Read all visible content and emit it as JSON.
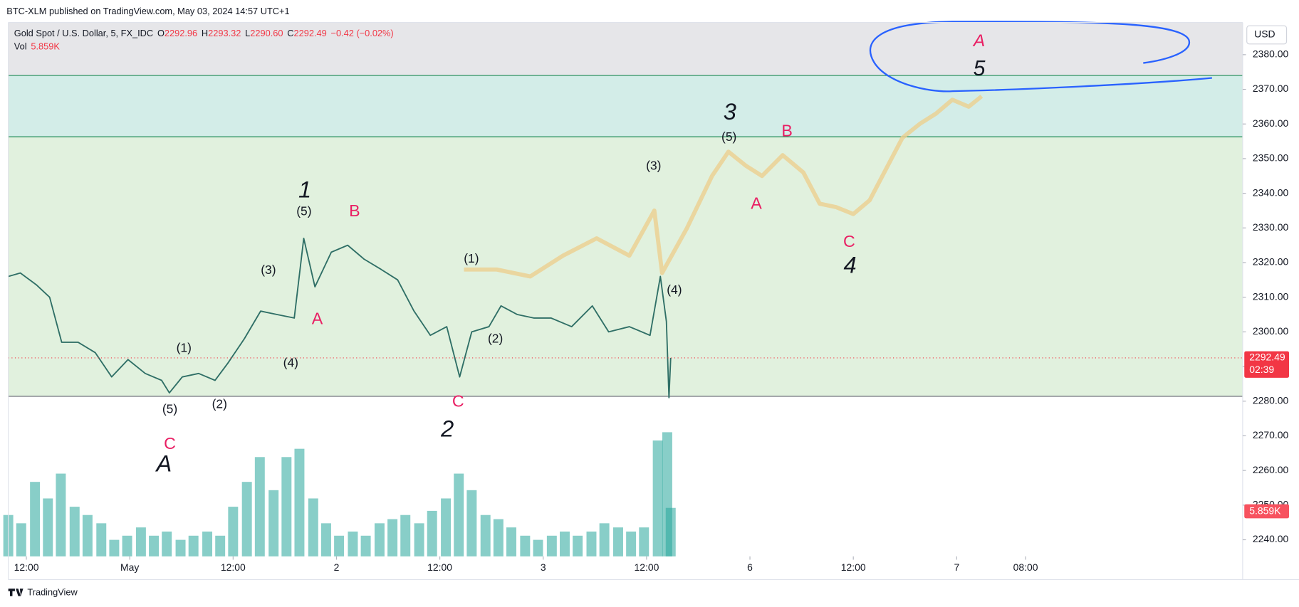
{
  "header": {
    "published": "BTC-XLM published on TradingView.com, May 03, 2024 14:57 UTC+1",
    "footer": "TradingView",
    "currency": "USD"
  },
  "legend": {
    "symbol": "Gold Spot / U.S. Dollar, 5, FX_IDC",
    "ohlc": [
      [
        "O",
        "2292.96"
      ],
      [
        "H",
        "2293.32"
      ],
      [
        "L",
        "2290.60"
      ],
      [
        "C",
        "2292.49"
      ]
    ],
    "change": "−0.42 (−0.02%)",
    "vol_label": "Vol",
    "vol_value": "5.859K",
    "countdown": "02:39"
  },
  "chart_data": [
    {
      "type": "line",
      "last_price": 2292.49,
      "last_color": "#f23645",
      "xlim": [
        -2.1,
        141.2
      ],
      "ylim": [
        2235.2,
        2389.3
      ],
      "xticks": [
        {
          "value": 0,
          "label": "12:00"
        },
        {
          "value": 12,
          "label": "May"
        },
        {
          "value": 24,
          "label": "12:00"
        },
        {
          "value": 36,
          "label": "2"
        },
        {
          "value": 48,
          "label": "12:00"
        },
        {
          "value": 60,
          "label": "3"
        },
        {
          "value": 72,
          "label": "12:00"
        },
        {
          "value": 84,
          "label": "6"
        },
        {
          "value": 96,
          "label": "12:00"
        },
        {
          "value": 108,
          "label": "7"
        },
        {
          "value": 116,
          "label": "08:00"
        }
      ],
      "yticks": [
        {
          "value": 2240,
          "label": "2240.00"
        },
        {
          "value": 2250,
          "label": "2250.00"
        },
        {
          "value": 2260,
          "label": "2260.00"
        },
        {
          "value": 2270,
          "label": "2270.00"
        },
        {
          "value": 2280,
          "label": "2280.00"
        },
        {
          "value": 2290,
          "label": "2290.00"
        },
        {
          "value": 2300,
          "label": "2300.00"
        },
        {
          "value": 2310,
          "label": "2310.00"
        },
        {
          "value": 2320,
          "label": "2320.00"
        },
        {
          "value": 2330,
          "label": "2330.00"
        },
        {
          "value": 2340,
          "label": "2340.00"
        },
        {
          "value": 2350,
          "label": "2350.00"
        },
        {
          "value": 2360,
          "label": "2360.00"
        },
        {
          "value": 2370,
          "label": "2370.00"
        },
        {
          "value": 2380,
          "label": "2380.00"
        }
      ],
      "zones": [
        {
          "from": 2374.0,
          "to": 2389.3,
          "color": "#e6e6e9"
        },
        {
          "from": 2356.3,
          "to": 2374.0,
          "color": "#d3ede8"
        },
        {
          "from": 2281.4,
          "to": 2356.3,
          "color": "#e1f1de"
        }
      ],
      "hlines": [
        {
          "value": 2374.0,
          "color": "#1e8a55"
        },
        {
          "value": 2356.3,
          "color": "#1e8a55"
        },
        {
          "value": 2281.4,
          "color": "#5d606b"
        }
      ],
      "series": [
        {
          "name": "Gold Spot / U.S. Dollar",
          "color": "#2f6f66",
          "x": [
            -2.1,
            -0.7,
            1.2,
            2.7,
            4.1,
            6.0,
            8.0,
            9.9,
            11.8,
            13.8,
            15.7,
            16.6,
            18.1,
            20.0,
            21.9,
            23.4,
            25.3,
            27.2,
            29.1,
            31.1,
            32.2,
            33.5,
            35.4,
            37.3,
            39.2,
            41.2,
            43.1,
            45.0,
            46.9,
            48.8,
            50.3,
            51.7,
            53.7,
            55.1,
            57.0,
            58.9,
            60.9,
            63.3,
            65.7,
            67.6,
            70.0,
            72.4,
            73.6,
            74.3,
            74.6,
            74.8
          ],
          "values": [
            2316,
            2317,
            2313.5,
            2310,
            2297,
            2297,
            2294,
            2287,
            2292,
            2288,
            2286,
            2282.4,
            2287,
            2288,
            2286,
            2291,
            2298,
            2306,
            2305,
            2304,
            2327,
            2313,
            2323,
            2325,
            2321,
            2318,
            2315,
            2306,
            2299,
            2301.5,
            2287,
            2300,
            2301.5,
            2307.5,
            2305,
            2304,
            2304,
            2301.5,
            2307.5,
            2300,
            2301.5,
            2299,
            2316,
            2303,
            2281,
            2292.5
          ]
        },
        {
          "name": "Projection",
          "color": "#ecd08e",
          "x": [
            50.8,
            54.6,
            58.5,
            62.3,
            66.2,
            70.0,
            72.9,
            73.8,
            76.7,
            79.6,
            81.5,
            83.5,
            85.4,
            87.8,
            90.2,
            92.1,
            94.0,
            96.0,
            97.9,
            99.8,
            101.7,
            103.7,
            105.6,
            107.5,
            109.4,
            110.9
          ],
          "values": [
            2318,
            2318,
            2316,
            2322,
            2327,
            2322,
            2335,
            2317,
            2330,
            2345,
            2352,
            2348,
            2345,
            2351,
            2346,
            2337,
            2336,
            2334,
            2338,
            2347,
            2356,
            2360,
            2363,
            2367,
            2365,
            2368
          ]
        }
      ],
      "annotations": [
        {
          "text": "(1)",
          "color": "#131722"
        },
        {
          "text": "(5)",
          "color": "#131722"
        },
        {
          "text": "(2)",
          "color": "#131722"
        },
        {
          "text": "C",
          "color": "#e91e63"
        },
        {
          "text": "A",
          "color": "#131722"
        },
        {
          "text": "(3)",
          "color": "#131722"
        },
        {
          "text": "(4)",
          "color": "#131722"
        },
        {
          "text": "1",
          "color": "#131722"
        },
        {
          "text": "(5)",
          "color": "#131722"
        },
        {
          "text": "A",
          "color": "#e91e63"
        },
        {
          "text": "B",
          "color": "#e91e63"
        },
        {
          "text": "(1)",
          "color": "#131722"
        },
        {
          "text": "(2)",
          "color": "#131722"
        },
        {
          "text": "C",
          "color": "#e91e63"
        },
        {
          "text": "2",
          "color": "#131722"
        },
        {
          "text": "(3)",
          "color": "#131722"
        },
        {
          "text": "(4)",
          "color": "#131722"
        },
        {
          "text": "3",
          "color": "#131722"
        },
        {
          "text": "(5)",
          "color": "#131722"
        },
        {
          "text": "B",
          "color": "#e91e63"
        },
        {
          "text": "A",
          "color": "#e91e63"
        },
        {
          "text": "C",
          "color": "#e91e63"
        },
        {
          "text": "4",
          "color": "#131722"
        },
        {
          "text": "A",
          "color": "#e91e63"
        },
        {
          "text": "5",
          "color": "#131722"
        }
      ]
    },
    {
      "type": "bar",
      "name": "Vol",
      "color": "#26a69a",
      "ylim": [
        0,
        16.2
      ],
      "x": [
        -2.1,
        -0.6,
        1.0,
        2.5,
        4.0,
        5.6,
        7.1,
        8.7,
        10.2,
        11.7,
        13.3,
        14.8,
        16.3,
        17.9,
        19.4,
        21.0,
        22.5,
        24.0,
        25.6,
        27.1,
        28.7,
        30.2,
        31.7,
        33.3,
        34.8,
        36.3,
        37.9,
        39.4,
        41.0,
        42.5,
        44.0,
        45.6,
        47.1,
        48.7,
        50.2,
        51.7,
        53.3,
        54.8,
        56.3,
        57.9,
        59.4,
        61.0,
        62.5,
        64.0,
        65.6,
        67.1,
        68.7,
        70.2,
        71.7,
        73.3,
        74.4,
        74.8
      ],
      "values": [
        5,
        4,
        9,
        7,
        10,
        6,
        5,
        4,
        2,
        2.5,
        3.5,
        2.5,
        3,
        2,
        2.5,
        3,
        2.5,
        6,
        9,
        12,
        8,
        12,
        13,
        7,
        4,
        2.5,
        3,
        2.5,
        4,
        4.5,
        5,
        4,
        5.5,
        7,
        10,
        8,
        5,
        4.5,
        3.5,
        2.5,
        2,
        2.5,
        3,
        2.5,
        3,
        4,
        3.5,
        3,
        3.5,
        14,
        15,
        5.859
      ]
    }
  ]
}
